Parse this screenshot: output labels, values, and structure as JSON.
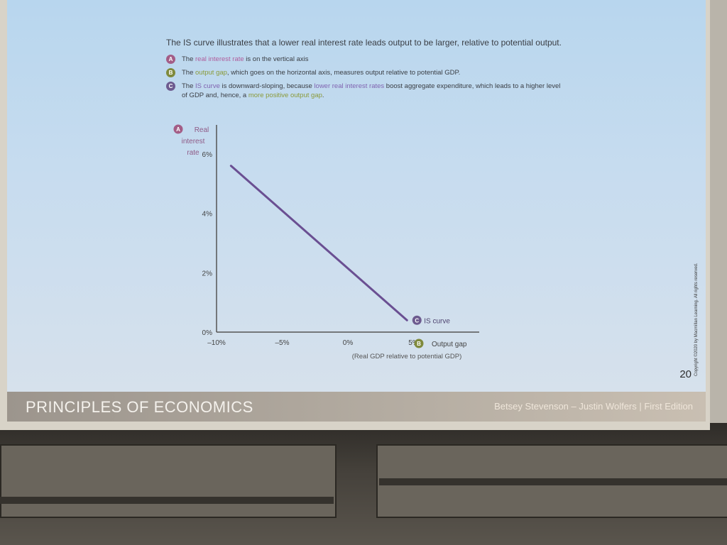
{
  "slide": {
    "lead_text": "The IS curve illustrates that a lower real interest rate leads output to be larger, relative to potential output.",
    "notes": [
      {
        "badge": "A",
        "parts": [
          {
            "text": "The ",
            "hl": ""
          },
          {
            "text": "real interest rate",
            "hl": "a"
          },
          {
            "text": " is on the vertical axis",
            "hl": ""
          }
        ]
      },
      {
        "badge": "B",
        "parts": [
          {
            "text": "The ",
            "hl": ""
          },
          {
            "text": "output gap",
            "hl": "b"
          },
          {
            "text": ", which goes on the horizontal axis, measures output relative to potential GDP.",
            "hl": ""
          }
        ]
      },
      {
        "badge": "C",
        "parts": [
          {
            "text": "The ",
            "hl": ""
          },
          {
            "text": "IS curve",
            "hl": "c"
          },
          {
            "text": " is downward-sloping, because ",
            "hl": ""
          },
          {
            "text": "lower real interest rates",
            "hl": "c"
          },
          {
            "text": " boost aggregate expenditure, which leads to a higher level of GDP and, hence, a ",
            "hl": ""
          },
          {
            "text": "more positive output gap",
            "hl": "b"
          },
          {
            "text": ".",
            "hl": ""
          }
        ]
      }
    ],
    "page_number": "20",
    "copyright": "Copyright ©2020 by Macmillan Learning. All rights reserved."
  },
  "footer": {
    "title": "PRINCIPLES OF ECONOMICS",
    "authors": "Betsey Stevenson – Justin Wolfers | First Edition"
  },
  "colors": {
    "curve": "#6a4f92",
    "axis": "#555555",
    "badge_a": "#a35d86",
    "badge_b": "#7f8a3c",
    "badge_c": "#6d5b8f"
  },
  "chart_data": {
    "type": "line",
    "ylabel_lines": [
      "Real",
      "interest",
      "rate"
    ],
    "ylabel_badge": "A",
    "xlabel": "Output gap",
    "xlabel_badge": "B",
    "xlabel_sub": "(Real GDP relative to potential GDP)",
    "x_ticks": [
      {
        "value": -10,
        "label": "–10%"
      },
      {
        "value": -5,
        "label": "–5%"
      },
      {
        "value": 0,
        "label": "0%"
      },
      {
        "value": 5,
        "label": "5%"
      }
    ],
    "y_ticks": [
      {
        "value": 0,
        "label": "0%"
      },
      {
        "value": 2,
        "label": "2%"
      },
      {
        "value": 4,
        "label": "4%"
      },
      {
        "value": 6,
        "label": "6%"
      }
    ],
    "xlim": [
      -10,
      10
    ],
    "ylim": [
      0,
      6.5
    ],
    "series": [
      {
        "name": "IS curve",
        "badge": "C",
        "points": [
          {
            "x": -8.9,
            "y": 5.6
          },
          {
            "x": 4.5,
            "y": 0.4
          }
        ]
      }
    ],
    "grid": false,
    "legend": "none"
  }
}
